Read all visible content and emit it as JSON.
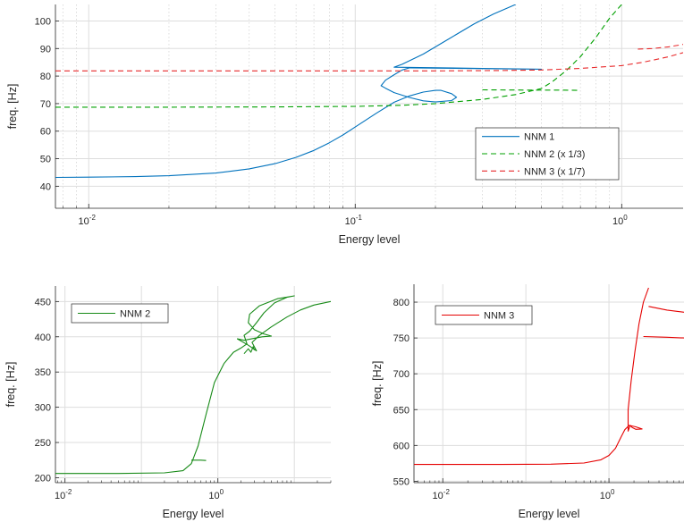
{
  "chart_data": [
    {
      "type": "line",
      "xlabel": "Energy level",
      "ylabel": "freq. [Hz]",
      "xscale": "log",
      "xlim": [
        0.0075,
        1.7
      ],
      "ylim": [
        32,
        106
      ],
      "xticks": [
        {
          "base": "10",
          "exp": "-2"
        },
        {
          "base": "10",
          "exp": "-1"
        },
        {
          "base": "10",
          "exp": "0"
        }
      ],
      "yticks": [
        "40",
        "50",
        "60",
        "70",
        "80",
        "90",
        "100"
      ],
      "grid": true,
      "legend_position": "lower-right",
      "series": [
        {
          "name": "NNM 1",
          "color": "#0072BD",
          "dash": "solid",
          "points": [
            [
              0.0075,
              43.2
            ],
            [
              0.01,
              43.3
            ],
            [
              0.015,
              43.5
            ],
            [
              0.02,
              43.8
            ],
            [
              0.03,
              44.8
            ],
            [
              0.04,
              46.3
            ],
            [
              0.05,
              48.2
            ],
            [
              0.06,
              50.5
            ],
            [
              0.07,
              53.0
            ],
            [
              0.08,
              55.8
            ],
            [
              0.09,
              58.6
            ],
            [
              0.1,
              61.5
            ],
            [
              0.12,
              66.5
            ],
            [
              0.14,
              70.5
            ],
            [
              0.16,
              72.8
            ],
            [
              0.18,
              74.2
            ],
            [
              0.2,
              74.8
            ],
            [
              0.21,
              74.8
            ],
            [
              0.23,
              73.6
            ],
            [
              0.24,
              72.3
            ],
            [
              0.23,
              71.1
            ],
            [
              0.2,
              70.6
            ],
            [
              0.18,
              71.0
            ],
            [
              0.16,
              72.2
            ],
            [
              0.14,
              74.0
            ],
            [
              0.13,
              75.6
            ],
            [
              0.125,
              76.5
            ],
            [
              0.13,
              78.5
            ],
            [
              0.14,
              80.5
            ],
            [
              0.15,
              82.2
            ],
            [
              0.16,
              83.0
            ],
            [
              0.5,
              82.5
            ],
            [
              0.3,
              82.8
            ],
            [
              0.14,
              83.2
            ],
            [
              0.15,
              84.3
            ],
            [
              0.18,
              88.0
            ],
            [
              0.22,
              93.0
            ],
            [
              0.28,
              99.0
            ],
            [
              0.33,
              102.5
            ],
            [
              0.4,
              106
            ]
          ]
        },
        {
          "name": "NNM 2 (x 1/3)",
          "color": "#00A000",
          "dash": "dashed",
          "points": [
            [
              0.0075,
              68.7
            ],
            [
              0.02,
              68.7
            ],
            [
              0.05,
              68.8
            ],
            [
              0.1,
              69.0
            ],
            [
              0.15,
              69.4
            ],
            [
              0.2,
              70.0
            ],
            [
              0.3,
              71.5
            ],
            [
              0.4,
              73.3
            ],
            [
              0.5,
              75.5
            ],
            [
              0.55,
              78.0
            ],
            [
              0.62,
              82.0
            ],
            [
              0.7,
              87.0
            ],
            [
              0.8,
              94.0
            ],
            [
              0.9,
              101.0
            ],
            [
              1.0,
              106.0
            ]
          ]
        },
        {
          "name": "",
          "color": "#00A000",
          "dash": "dashed",
          "points": [
            [
              0.3,
              75.0
            ],
            [
              0.45,
              74.9
            ],
            [
              0.6,
              74.9
            ],
            [
              0.7,
              74.8
            ]
          ]
        },
        {
          "name": "NNM 3 (x 1/7)",
          "color": "#E8292B",
          "dash": "dashed",
          "points": [
            [
              0.0075,
              81.9
            ],
            [
              0.05,
              81.9
            ],
            [
              0.2,
              81.9
            ],
            [
              0.35,
              82.0
            ],
            [
              0.5,
              82.2
            ],
            [
              0.7,
              82.8
            ],
            [
              1.0,
              83.8
            ],
            [
              1.2,
              85.0
            ],
            [
              1.5,
              87.0
            ],
            [
              1.7,
              88.5
            ]
          ]
        },
        {
          "name": "",
          "color": "#E8292B",
          "dash": "dashed",
          "points": [
            [
              1.15,
              89.8
            ],
            [
              1.3,
              90.0
            ],
            [
              1.5,
              90.6
            ],
            [
              1.7,
              91.5
            ]
          ]
        }
      ]
    },
    {
      "type": "line",
      "xlabel": "Energy level",
      "ylabel": "freq. [Hz]",
      "xscale": "log",
      "xlim": [
        0.0075,
        30
      ],
      "ylim": [
        193,
        472
      ],
      "xticks": [
        {
          "base": "10",
          "exp": "-2"
        },
        {
          "base": "10",
          "exp": "0"
        }
      ],
      "yticks": [
        "200",
        "250",
        "300",
        "350",
        "400",
        "450"
      ],
      "grid": true,
      "legend_position": "top-left",
      "series": [
        {
          "name": "NNM 2",
          "color": "#178A17",
          "dash": "solid",
          "points": [
            [
              0.0075,
              206
            ],
            [
              0.05,
              206
            ],
            [
              0.2,
              207
            ],
            [
              0.35,
              210
            ],
            [
              0.45,
              220
            ],
            [
              0.55,
              245
            ],
            [
              0.7,
              290
            ],
            [
              0.9,
              335
            ],
            [
              1.2,
              362
            ],
            [
              1.6,
              378
            ],
            [
              2.0,
              384
            ],
            [
              2.4,
              390
            ],
            [
              2.2,
              402
            ],
            [
              2.6,
              408
            ],
            [
              3.2,
              420
            ],
            [
              4.0,
              434
            ],
            [
              5.5,
              448
            ],
            [
              8.0,
              456
            ],
            [
              10.0,
              458
            ],
            [
              6.0,
              454
            ],
            [
              3.5,
              444
            ],
            [
              2.6,
              432
            ],
            [
              2.5,
              420
            ],
            [
              3.0,
              410
            ],
            [
              4.0,
              404
            ],
            [
              5.0,
              401
            ],
            [
              3.8,
              400
            ],
            [
              3.0,
              398
            ],
            [
              2.2,
              395
            ],
            [
              1.8,
              397
            ],
            [
              2.5,
              388
            ],
            [
              3.2,
              380
            ],
            [
              2.8,
              392
            ],
            [
              3.5,
              402
            ],
            [
              5.0,
              414
            ],
            [
              8.0,
              428
            ],
            [
              12.0,
              438
            ],
            [
              18.0,
              445
            ],
            [
              30.0,
              450
            ]
          ]
        },
        {
          "name": "",
          "color": "#178A17",
          "dash": "solid",
          "points": [
            [
              0.45,
              225
            ],
            [
              0.6,
              225
            ],
            [
              0.7,
              224.5
            ]
          ]
        },
        {
          "name": "",
          "color": "#178A17",
          "dash": "solid",
          "points": [
            [
              2.2,
              376
            ],
            [
              2.5,
              383
            ],
            [
              2.7,
              378
            ],
            [
              2.9,
              386
            ],
            [
              3.0,
              381
            ]
          ]
        }
      ]
    },
    {
      "type": "line",
      "xlabel": "Energy level",
      "ylabel": "freq. [Hz]",
      "xscale": "log",
      "xlim": [
        0.0045,
        8
      ],
      "ylim": [
        548,
        825
      ],
      "xticks": [
        {
          "base": "10",
          "exp": "-2"
        },
        {
          "base": "10",
          "exp": "0"
        }
      ],
      "yticks": [
        "550",
        "600",
        "650",
        "700",
        "750",
        "800"
      ],
      "grid": true,
      "legend_position": "top-left",
      "series": [
        {
          "name": "NNM 3",
          "color": "#E50000",
          "dash": "solid",
          "points": [
            [
              0.0045,
              573.4
            ],
            [
              0.05,
              573.4
            ],
            [
              0.2,
              573.8
            ],
            [
              0.5,
              575.5
            ],
            [
              0.8,
              580
            ],
            [
              1.0,
              586
            ],
            [
              1.2,
              596
            ],
            [
              1.4,
              612
            ],
            [
              1.55,
              622
            ],
            [
              1.75,
              628
            ],
            [
              2.1,
              626
            ],
            [
              2.5,
              623
            ],
            [
              2.1,
              622.5
            ],
            [
              1.9,
              625
            ],
            [
              1.8,
              628
            ],
            [
              1.7,
              620
            ],
            [
              1.7,
              650
            ],
            [
              1.85,
              690
            ],
            [
              2.05,
              730
            ],
            [
              2.3,
              770
            ],
            [
              2.6,
              800
            ],
            [
              3.0,
              820
            ]
          ]
        },
        {
          "name": "",
          "color": "#E50000",
          "dash": "solid",
          "points": [
            [
              3.0,
              794
            ],
            [
              5.0,
              789
            ],
            [
              8.0,
              786
            ]
          ]
        },
        {
          "name": "",
          "color": "#E50000",
          "dash": "solid",
          "points": [
            [
              2.6,
              752
            ],
            [
              5.0,
              751
            ],
            [
              8.0,
              750
            ]
          ]
        }
      ]
    }
  ]
}
